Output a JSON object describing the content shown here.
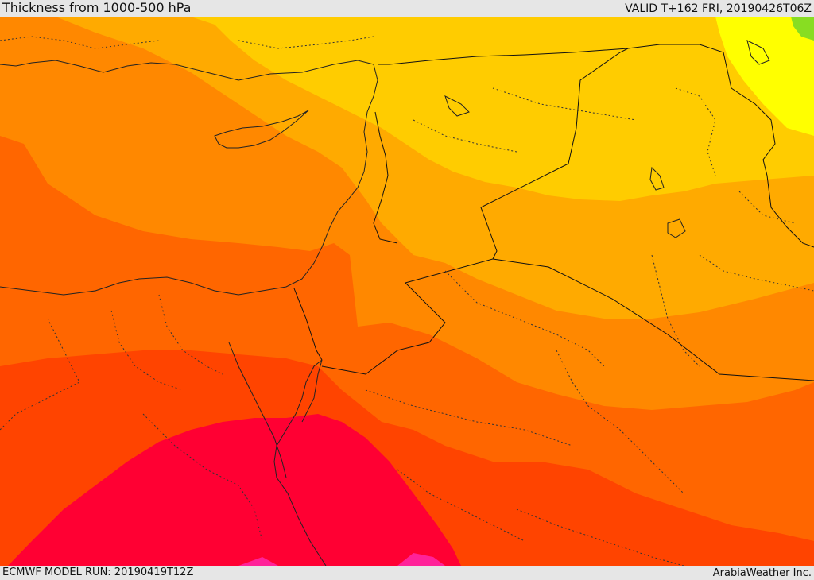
{
  "header": {
    "title": "Thickness from 1000-500 hPa",
    "valid": "VALID T+162 FRI, 20190426T06Z"
  },
  "footer": {
    "model_run": "ECMWF MODEL RUN: 20190419T12Z",
    "credit": "ArabiaWeather Inc."
  },
  "colors": {
    "band_yellow": "#ffff00",
    "band_light_orange": "#ffcc00",
    "band_amber": "#ffaa00",
    "band_orange": "#ff8800",
    "band_dark_orange": "#ff6600",
    "band_red_orange": "#ff4400",
    "band_crimson": "#ff0033",
    "band_magenta": "#ff2299",
    "small_green": "#88dd22",
    "borders": "#222222"
  }
}
